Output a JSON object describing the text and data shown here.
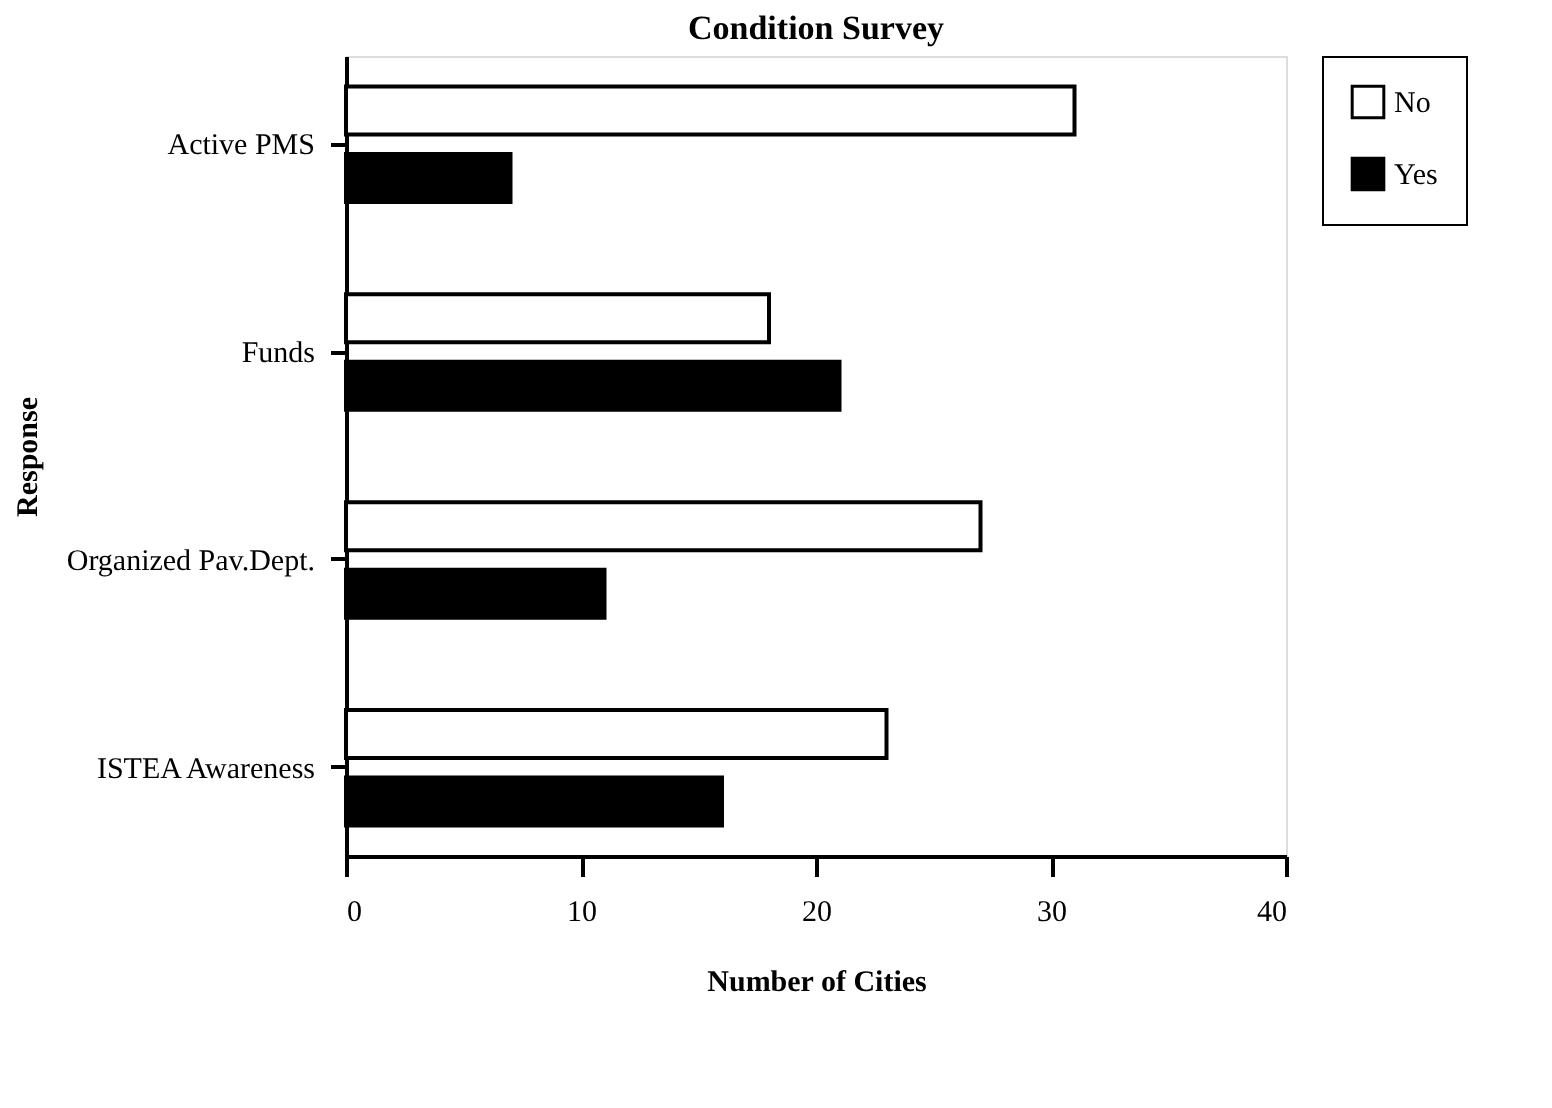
{
  "chart_data": {
    "type": "bar",
    "orientation": "horizontal",
    "title": "Condition Survey",
    "xlabel": "Number of Cities",
    "ylabel": "Response",
    "categories": [
      "Active PMS",
      "Funds",
      "Organized Pav.Dept.",
      "ISTEA Awareness"
    ],
    "series": [
      {
        "name": "No",
        "color": "#ffffff",
        "values": [
          31,
          18,
          27,
          23
        ]
      },
      {
        "name": "Yes",
        "color": "#000000",
        "values": [
          7,
          21,
          11,
          16
        ]
      }
    ],
    "xlim": [
      0,
      40
    ],
    "xticks": [
      0,
      10,
      20,
      30,
      40
    ],
    "grid": false,
    "legend": "right"
  }
}
